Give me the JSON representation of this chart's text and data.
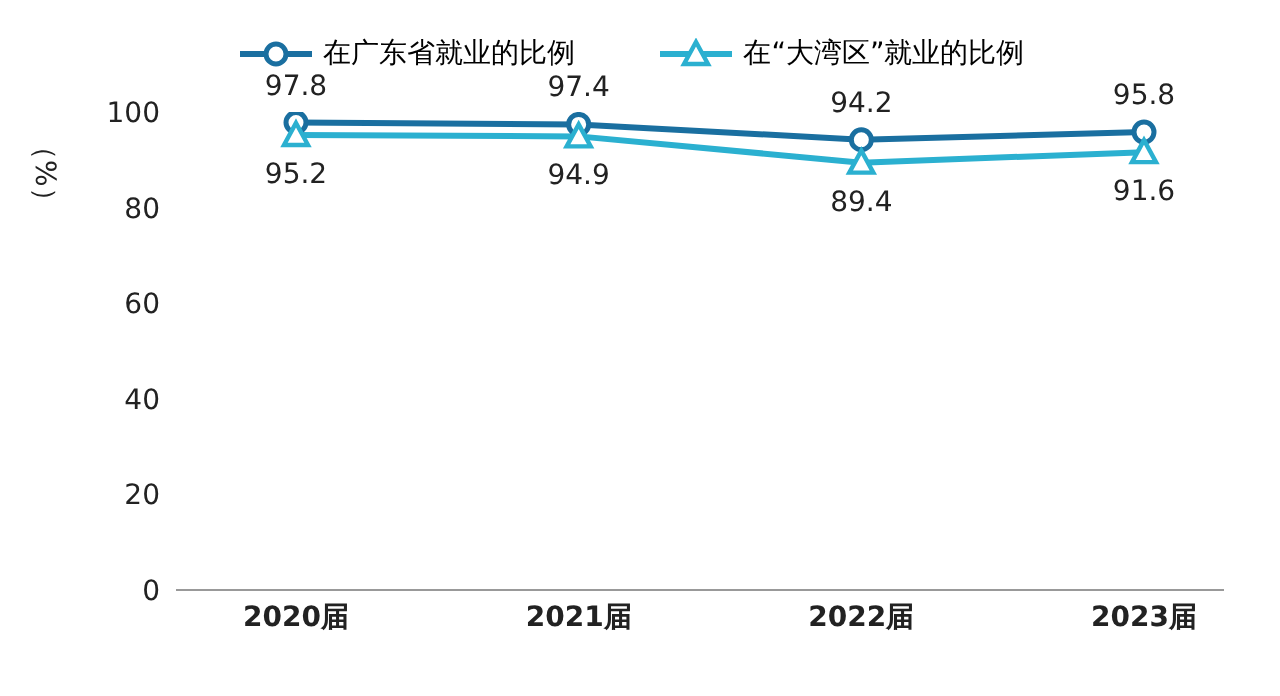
{
  "chart_data": {
    "type": "line",
    "ylabel": "（%）",
    "categories": [
      "2020届",
      "2021届",
      "2022届",
      "2023届"
    ],
    "series": [
      {
        "name": "在广东省就业的比例",
        "color": "#1a6fa0",
        "values": [
          97.8,
          97.4,
          94.2,
          95.8
        ],
        "marker": "circle"
      },
      {
        "name": "在“大湾区”就业的比例",
        "color": "#2bb0d0",
        "values": [
          95.2,
          94.9,
          89.4,
          91.6
        ],
        "marker": "triangle"
      }
    ],
    "ylim": [
      0,
      100
    ],
    "yticks": [
      0,
      20,
      40,
      60,
      80,
      100
    ],
    "grid": false,
    "legend": "top",
    "data_labels": true,
    "line_style": "solid"
  }
}
